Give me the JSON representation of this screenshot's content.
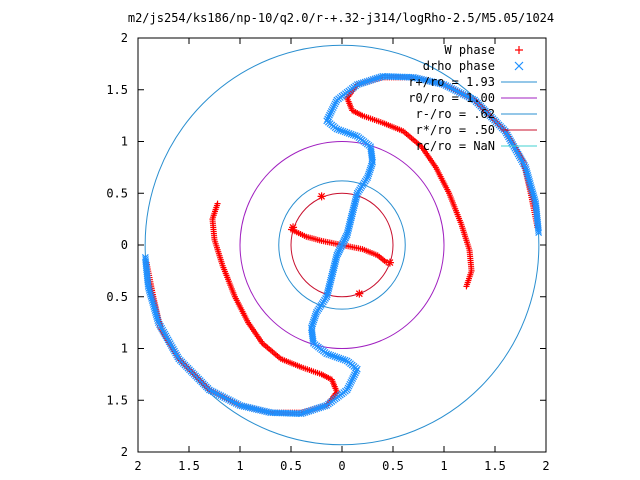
{
  "chart_data": {
    "type": "scatter",
    "title": "m2/js254/ks186/np-10/q2.0/r-+.32-j314/logRho-2.5/M5.05/1024",
    "xlim": [
      -2,
      2
    ],
    "ylim": [
      -2,
      2
    ],
    "x_ticks": [
      {
        "value": -2,
        "label": "2"
      },
      {
        "value": -1.5,
        "label": "1.5"
      },
      {
        "value": -1,
        "label": "1"
      },
      {
        "value": -0.5,
        "label": "0.5"
      },
      {
        "value": 0,
        "label": "0"
      },
      {
        "value": 0.5,
        "label": "0.5"
      },
      {
        "value": 1,
        "label": "1"
      },
      {
        "value": 1.5,
        "label": "1.5"
      },
      {
        "value": 2,
        "label": "2"
      }
    ],
    "y_ticks": [
      {
        "value": 2,
        "label": "2"
      },
      {
        "value": 1.5,
        "label": "1.5"
      },
      {
        "value": 1,
        "label": "1"
      },
      {
        "value": 0.5,
        "label": "0.5"
      },
      {
        "value": 0,
        "label": "0"
      },
      {
        "value": -0.5,
        "label": "0.5"
      },
      {
        "value": -1,
        "label": "1"
      },
      {
        "value": -1.5,
        "label": "1.5"
      },
      {
        "value": -2,
        "label": "2"
      }
    ],
    "grid": false,
    "legend_position": "top-right",
    "series": [
      {
        "name": "W phase",
        "marker": "plus",
        "color": "#ff0000",
        "arms": [
          [
            [
              1.22,
              -0.4
            ],
            [
              1.27,
              -0.25
            ],
            [
              1.25,
              -0.05
            ],
            [
              1.17,
              0.2
            ],
            [
              1.05,
              0.5
            ],
            [
              0.92,
              0.75
            ],
            [
              0.78,
              0.95
            ],
            [
              0.6,
              1.1
            ],
            [
              0.4,
              1.18
            ],
            [
              0.2,
              1.25
            ],
            [
              0.1,
              1.3
            ],
            [
              0.05,
              1.42
            ],
            [
              0.15,
              1.55
            ],
            [
              0.4,
              1.62
            ],
            [
              0.7,
              1.62
            ],
            [
              1.0,
              1.55
            ],
            [
              1.3,
              1.4
            ],
            [
              1.6,
              1.1
            ],
            [
              1.78,
              0.8
            ],
            [
              1.85,
              0.5
            ],
            [
              1.92,
              0.15
            ]
          ],
          [
            [
              -1.22,
              0.4
            ],
            [
              -1.27,
              0.25
            ],
            [
              -1.25,
              0.05
            ],
            [
              -1.17,
              -0.2
            ],
            [
              -1.05,
              -0.5
            ],
            [
              -0.92,
              -0.75
            ],
            [
              -0.78,
              -0.95
            ],
            [
              -0.6,
              -1.1
            ],
            [
              -0.4,
              -1.18
            ],
            [
              -0.2,
              -1.25
            ],
            [
              -0.1,
              -1.3
            ],
            [
              -0.05,
              -1.42
            ],
            [
              -0.15,
              -1.55
            ],
            [
              -0.4,
              -1.62
            ],
            [
              -0.7,
              -1.62
            ],
            [
              -1.0,
              -1.55
            ],
            [
              -1.3,
              -1.4
            ],
            [
              -1.6,
              -1.1
            ],
            [
              -1.78,
              -0.8
            ],
            [
              -1.85,
              -0.5
            ],
            [
              -1.92,
              -0.15
            ]
          ],
          [
            [
              -0.5,
              0.15
            ],
            [
              -0.35,
              0.08
            ],
            [
              -0.2,
              0.04
            ],
            [
              0.0,
              0.0
            ],
            [
              0.2,
              -0.04
            ],
            [
              0.35,
              -0.1
            ],
            [
              0.45,
              -0.18
            ]
          ]
        ]
      },
      {
        "name": "drho phase",
        "marker": "cross",
        "color": "#1e90ff",
        "arms": [
          [
            [
              -0.15,
              -0.5
            ],
            [
              -0.1,
              -0.3
            ],
            [
              -0.05,
              -0.1
            ],
            [
              0.0,
              0.0
            ],
            [
              0.05,
              0.1
            ],
            [
              0.1,
              0.3
            ],
            [
              0.15,
              0.5
            ],
            [
              0.25,
              0.65
            ],
            [
              0.3,
              0.8
            ],
            [
              0.28,
              0.95
            ],
            [
              0.15,
              1.05
            ],
            [
              -0.05,
              1.12
            ],
            [
              -0.15,
              1.2
            ],
            [
              -0.05,
              1.4
            ],
            [
              0.15,
              1.55
            ],
            [
              0.4,
              1.63
            ],
            [
              0.7,
              1.62
            ],
            [
              1.0,
              1.55
            ],
            [
              1.3,
              1.4
            ],
            [
              1.6,
              1.1
            ],
            [
              1.8,
              0.75
            ],
            [
              1.9,
              0.4
            ],
            [
              1.93,
              0.1
            ]
          ],
          [
            [
              0.15,
              0.5
            ],
            [
              0.1,
              0.3
            ],
            [
              0.05,
              0.1
            ],
            [
              0.0,
              0.0
            ],
            [
              -0.05,
              -0.1
            ],
            [
              -0.1,
              -0.3
            ],
            [
              -0.15,
              -0.5
            ],
            [
              -0.25,
              -0.65
            ],
            [
              -0.3,
              -0.8
            ],
            [
              -0.28,
              -0.95
            ],
            [
              -0.15,
              -1.05
            ],
            [
              0.05,
              -1.12
            ],
            [
              0.15,
              -1.2
            ],
            [
              0.05,
              -1.4
            ],
            [
              -0.15,
              -1.55
            ],
            [
              -0.4,
              -1.63
            ],
            [
              -0.7,
              -1.62
            ],
            [
              -1.0,
              -1.55
            ],
            [
              -1.3,
              -1.4
            ],
            [
              -1.6,
              -1.1
            ],
            [
              -1.8,
              -0.75
            ],
            [
              -1.9,
              -0.4
            ],
            [
              -1.93,
              -0.1
            ]
          ]
        ]
      },
      {
        "name": "r+/ro = 1.93",
        "type": "circle",
        "radius": 1.93,
        "color": "#2a8fd0"
      },
      {
        "name": "r0/ro = 1.00",
        "type": "circle",
        "radius": 1.0,
        "color": "#a020c0"
      },
      {
        "name": "r-/ro = .62",
        "type": "circle",
        "radius": 0.62,
        "color": "#2a8fd0"
      },
      {
        "name": "r*/ro = .50",
        "type": "circle",
        "radius": 0.5,
        "color": "#c8102e"
      },
      {
        "name": "rc/ro = NaN",
        "type": "circle",
        "radius": null,
        "color": "#40d0d0"
      }
    ],
    "special_points": {
      "color": "#ff0000",
      "points": [
        [
          -0.2,
          0.47
        ],
        [
          0.17,
          -0.47
        ],
        [
          -0.48,
          0.17
        ],
        [
          0.47,
          -0.17
        ]
      ]
    }
  }
}
